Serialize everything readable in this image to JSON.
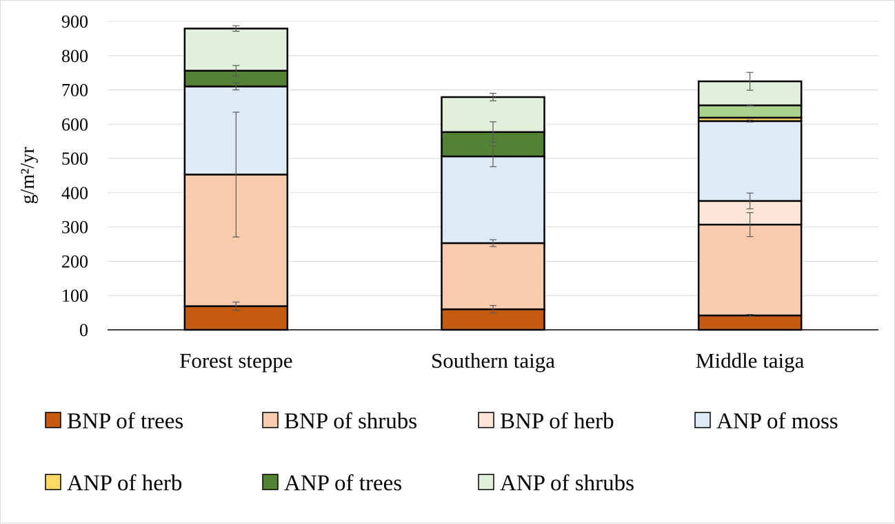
{
  "chart_data": {
    "type": "bar",
    "stacked": true,
    "title": "",
    "xlabel": "",
    "ylabel": "g/m²/yr",
    "ylim": [
      0,
      900
    ],
    "yticks": [
      0,
      100,
      200,
      300,
      400,
      500,
      600,
      700,
      800,
      900
    ],
    "grid": true,
    "legend_position": "bottom",
    "categories": [
      "Forest steppe",
      "Southern taiga",
      "Middle taiga"
    ],
    "series": [
      {
        "name": "BNP of trees",
        "color": "#c55a11",
        "values": [
          69,
          60,
          42
        ],
        "errors": [
          12,
          11,
          3
        ]
      },
      {
        "name": "BNP of shrubs",
        "color": "#f8cbad",
        "values": [
          384,
          193,
          265
        ],
        "errors": [
          182,
          10,
          35
        ]
      },
      {
        "name": "BNP of herb",
        "color": "#fbe5d6",
        "values": [
          0,
          0,
          69
        ],
        "errors": [
          0,
          0,
          23
        ]
      },
      {
        "name": "ANP of moss",
        "color": "#deebf7",
        "values": [
          257,
          253,
          233
        ],
        "errors": [
          10,
          30,
          3
        ]
      },
      {
        "name": "ANP of herb",
        "color": "#ffd966",
        "values": [
          0,
          0,
          10
        ],
        "errors": [
          0,
          0,
          0
        ]
      },
      {
        "name": "ANP of trees",
        "color": "#548235",
        "point_colors": [
          "#548235",
          "#548235",
          "#a9d18e"
        ],
        "values": [
          46,
          71,
          36
        ],
        "errors": [
          15,
          30,
          2
        ]
      },
      {
        "name": "ANP of shrubs",
        "color": "#e2efda",
        "values": [
          123,
          102,
          70
        ],
        "errors": [
          8,
          11,
          26
        ]
      }
    ]
  }
}
